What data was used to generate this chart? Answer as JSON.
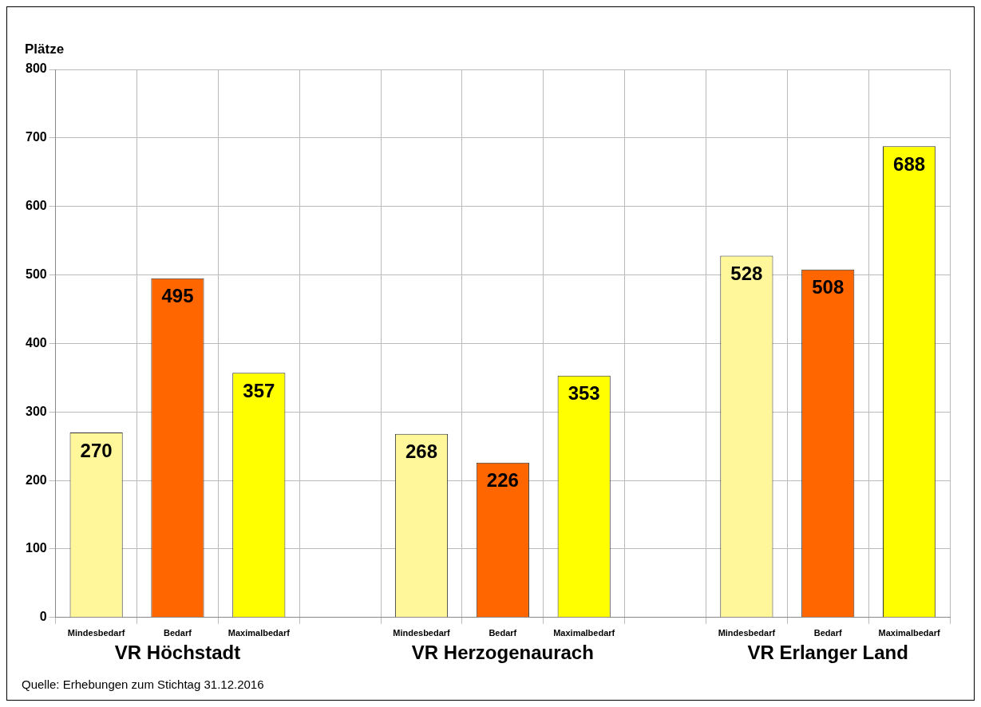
{
  "chart_data": {
    "type": "bar",
    "ylabel": "Plätze",
    "categories": [
      "Mindesbedarf",
      "Bedarf",
      "Maximalbedarf",
      null,
      "Mindesbedarf",
      "Bedarf",
      "Maximalbedarf",
      null,
      "Mindesbedarf",
      "Bedarf",
      "Maximalbedarf"
    ],
    "values": [
      270,
      495,
      357,
      null,
      268,
      226,
      353,
      null,
      528,
      508,
      688
    ],
    "colors": [
      "#fff799",
      "#ff6600",
      "#ffff00",
      null,
      "#fff799",
      "#ff6600",
      "#ffff00",
      null,
      "#fff799",
      "#ff6600",
      "#ffff00"
    ],
    "ylim": [
      0,
      800
    ],
    "yticks": [
      0,
      100,
      200,
      300,
      400,
      500,
      600,
      700,
      800
    ],
    "grid": true,
    "data_labels": true,
    "annotations": [
      "VR Höchstadt",
      "VR Herzogenaurach",
      "VR Erlanger Land",
      "Quelle: Erhebungen zum Stichtag 31.12.2016"
    ]
  }
}
